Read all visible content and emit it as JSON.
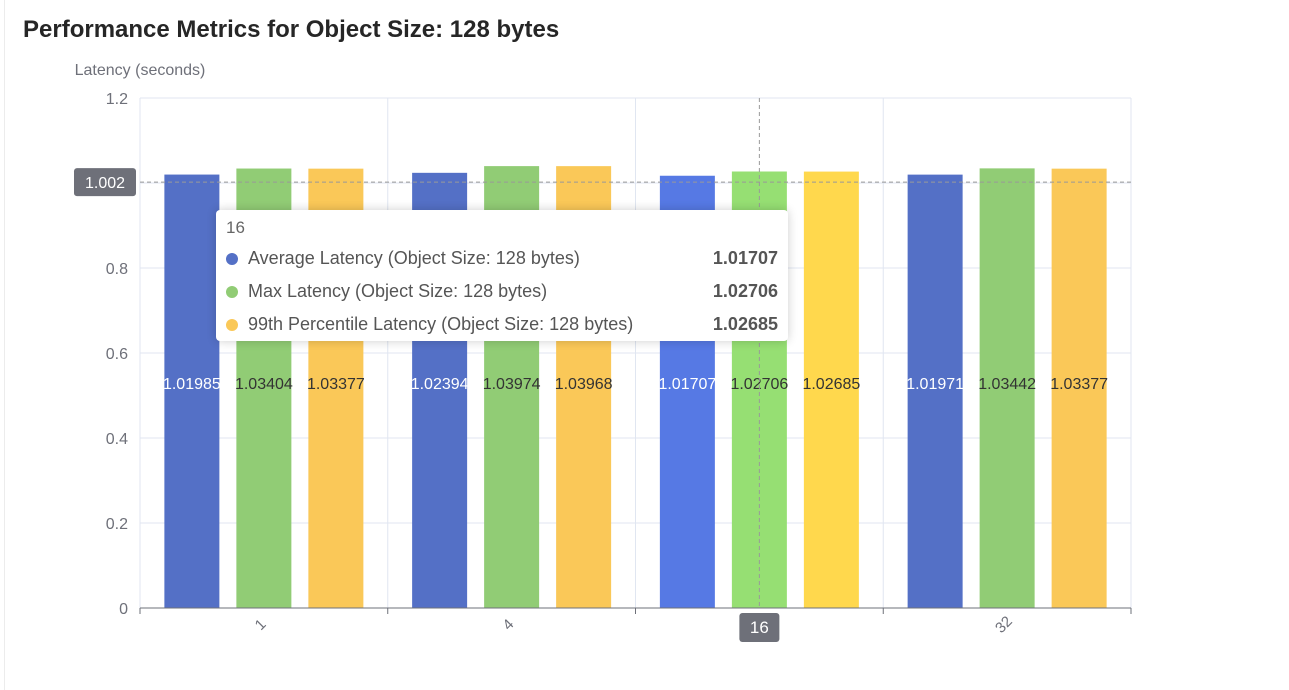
{
  "chart_data": {
    "type": "bar",
    "title": "Performance Metrics for Object Size: 128 bytes",
    "ylabel": "Latency (seconds)",
    "xlabel": "",
    "categories": [
      "1",
      "4",
      "16",
      "32"
    ],
    "series": [
      {
        "name": "Average Latency (Object Size: 128 bytes)",
        "color": "#5470c6",
        "values": [
          1.01985,
          1.02394,
          1.01707,
          1.01971
        ]
      },
      {
        "name": "Max Latency (Object Size: 128 bytes)",
        "color": "#91cc75",
        "values": [
          1.03404,
          1.03974,
          1.02706,
          1.03442
        ]
      },
      {
        "name": "99th Percentile Latency (Object Size: 128 bytes)",
        "color": "#fac858",
        "values": [
          1.03377,
          1.03968,
          1.02685,
          1.03377
        ]
      }
    ],
    "ylim": [
      0,
      1.2
    ],
    "yticks": [
      "0",
      "0.2",
      "0.4",
      "0.6",
      "0.8",
      "1",
      "1.2"
    ],
    "grid": true,
    "legend": "none",
    "axis_pointer": {
      "y_value": "1.002",
      "x_category": "16"
    },
    "tooltip": {
      "header": "16",
      "rows": [
        {
          "name": "Average Latency (Object Size: 128 bytes)",
          "value": "1.01707",
          "color": "#5470c6"
        },
        {
          "name": "Max Latency (Object Size: 128 bytes)",
          "value": "1.02706",
          "color": "#91cc75"
        },
        {
          "name": "99th Percentile Latency (Object Size: 128 bytes)",
          "value": "1.02685",
          "color": "#fac858"
        }
      ]
    }
  }
}
